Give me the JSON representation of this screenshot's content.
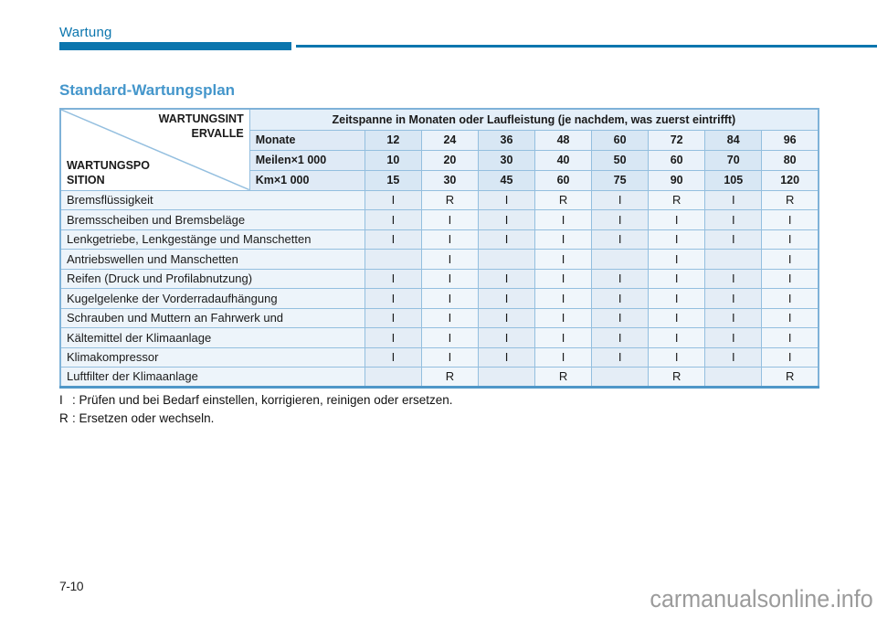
{
  "page": {
    "section_title": "Wartung",
    "heading": "Standard-Wartungsplan",
    "page_number": "7-10",
    "watermark": "carmanualsonline.info"
  },
  "colors": {
    "accent_blue": "#0b76ae",
    "heading_blue": "#4496cb",
    "table_border": "#94bfdf",
    "header_cell_bg": "#dfeaf6",
    "shaded_column_bg": "#d8e7f4",
    "light_column_bg": "#eaf2fa"
  },
  "table": {
    "corner": {
      "top1": "WARTUNGSINT",
      "top2": "ERVALLE",
      "bottom1": "WARTUNGSPO",
      "bottom2": "SITION"
    },
    "span_header": "Zeitspanne in Monaten oder Laufleistung (je nachdem, was zuerst eintrifft)",
    "unit_rows": [
      {
        "label": "Monate",
        "values": [
          "12",
          "24",
          "36",
          "48",
          "60",
          "72",
          "84",
          "96"
        ]
      },
      {
        "label": "Meilen×1 000",
        "values": [
          "10",
          "20",
          "30",
          "40",
          "50",
          "60",
          "70",
          "80"
        ]
      },
      {
        "label": "Km×1 000",
        "values": [
          "15",
          "30",
          "45",
          "60",
          "75",
          "90",
          "105",
          "120"
        ]
      }
    ],
    "rows": [
      {
        "label": "Bremsflüssigkeit",
        "cells": [
          "I",
          "R",
          "I",
          "R",
          "I",
          "R",
          "I",
          "R"
        ]
      },
      {
        "label": "Bremsscheiben und Bremsbeläge",
        "cells": [
          "I",
          "I",
          "I",
          "I",
          "I",
          "I",
          "I",
          "I"
        ]
      },
      {
        "label": "Lenkgetriebe, Lenkgestänge und Manschetten",
        "cells": [
          "I",
          "I",
          "I",
          "I",
          "I",
          "I",
          "I",
          "I"
        ]
      },
      {
        "label": "Antriebswellen und Manschetten",
        "cells": [
          "",
          "I",
          "",
          "I",
          "",
          "I",
          "",
          "I"
        ]
      },
      {
        "label": "Reifen (Druck und Profilabnutzung)",
        "cells": [
          "I",
          "I",
          "I",
          "I",
          "I",
          "I",
          "I",
          "I"
        ]
      },
      {
        "label": "Kugelgelenke der Vorderradaufhängung",
        "cells": [
          "I",
          "I",
          "I",
          "I",
          "I",
          "I",
          "I",
          "I"
        ]
      },
      {
        "label": "Schrauben und Muttern an Fahrwerk und",
        "cells": [
          "I",
          "I",
          "I",
          "I",
          "I",
          "I",
          "I",
          "I"
        ]
      },
      {
        "label": "Kältemittel der Klimaanlage",
        "cells": [
          "I",
          "I",
          "I",
          "I",
          "I",
          "I",
          "I",
          "I"
        ]
      },
      {
        "label": "Klimakompressor",
        "cells": [
          "I",
          "I",
          "I",
          "I",
          "I",
          "I",
          "I",
          "I"
        ]
      },
      {
        "label": "Luftfilter der Klimaanlage",
        "cells": [
          "",
          "R",
          "",
          "R",
          "",
          "R",
          "",
          "R"
        ]
      }
    ],
    "legend": [
      {
        "symbol": "I",
        "separator": ":",
        "text": "Prüfen und bei Bedarf einstellen, korrigieren, reinigen oder ersetzen."
      },
      {
        "symbol": "R",
        "separator": ":",
        "text": "Ersetzen oder wechseln."
      }
    ]
  }
}
